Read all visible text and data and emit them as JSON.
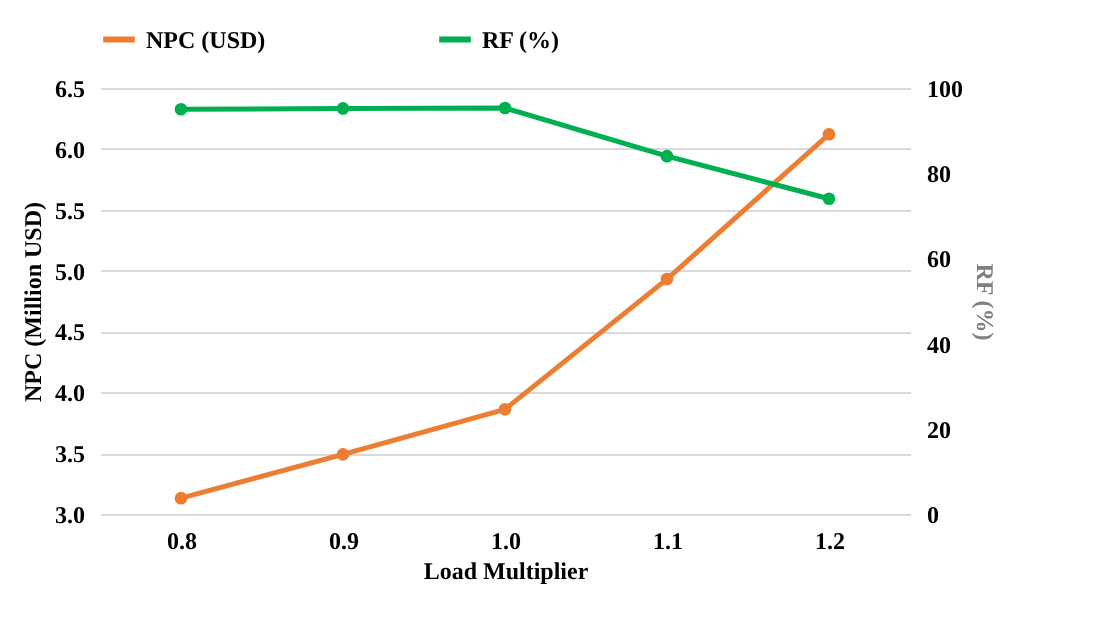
{
  "chart_data": {
    "type": "line",
    "xlabel": "Load Multiplier",
    "ylabel": "NPC (Million USD)",
    "y2label": "RF (%)",
    "categories": [
      "0.8",
      "0.9",
      "1.0",
      "1.1",
      "1.2"
    ],
    "series": [
      {
        "name": "NPC (USD)",
        "color": "#ed7d31",
        "values": [
          3.13,
          3.49,
          3.86,
          4.93,
          6.12
        ]
      },
      {
        "name": "RF (%)",
        "color": "#00b050",
        "values": [
          95,
          95.2,
          95.3,
          84,
          74
        ],
        "axis": "y2"
      }
    ],
    "ylim": [
      3.0,
      6.5
    ],
    "yticks": [
      {
        "value": 3.0,
        "label": "3.0"
      },
      {
        "value": 3.5,
        "label": "3.5"
      },
      {
        "value": 4.0,
        "label": "4.0"
      },
      {
        "value": 4.5,
        "label": "4.5"
      },
      {
        "value": 5.0,
        "label": "5.0"
      },
      {
        "value": 5.5,
        "label": "5.5"
      },
      {
        "value": 6.0,
        "label": "6.0"
      },
      {
        "value": 6.5,
        "label": "6.5"
      }
    ],
    "y2lim": [
      0,
      100
    ],
    "y2ticks": [
      0,
      20,
      40,
      60,
      80,
      100
    ],
    "grid": "y",
    "legend": "top",
    "marker": "circle",
    "line_style": "solid"
  }
}
